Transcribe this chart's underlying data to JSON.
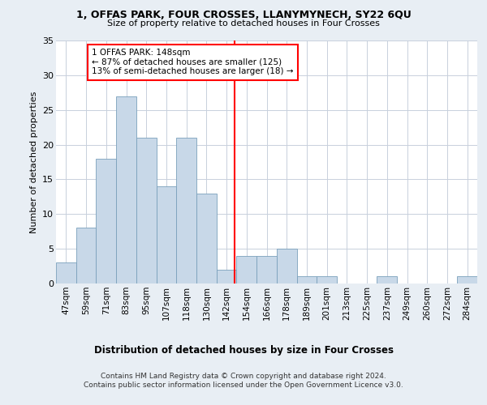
{
  "title1": "1, OFFAS PARK, FOUR CROSSES, LLANYMYNECH, SY22 6QU",
  "title2": "Size of property relative to detached houses in Four Crosses",
  "xlabel": "Distribution of detached houses by size in Four Crosses",
  "ylabel": "Number of detached properties",
  "categories": [
    "47sqm",
    "59sqm",
    "71sqm",
    "83sqm",
    "95sqm",
    "107sqm",
    "118sqm",
    "130sqm",
    "142sqm",
    "154sqm",
    "166sqm",
    "178sqm",
    "189sqm",
    "201sqm",
    "213sqm",
    "225sqm",
    "237sqm",
    "249sqm",
    "260sqm",
    "272sqm",
    "284sqm"
  ],
  "values": [
    3,
    8,
    18,
    27,
    21,
    14,
    21,
    13,
    2,
    4,
    4,
    5,
    1,
    1,
    0,
    0,
    1,
    0,
    0,
    0,
    1
  ],
  "bar_color": "#c8d8e8",
  "bar_edge_color": "#7aa0bb",
  "vline_color": "red",
  "annotation_text": "1 OFFAS PARK: 148sqm\n← 87% of detached houses are smaller (125)\n13% of semi-detached houses are larger (18) →",
  "annotation_box_color": "white",
  "annotation_box_edge": "red",
  "ylim": [
    0,
    35
  ],
  "yticks": [
    0,
    5,
    10,
    15,
    20,
    25,
    30,
    35
  ],
  "bg_color": "#e8eef4",
  "plot_bg_color": "white",
  "grid_color": "#c8d0dc",
  "footer": "Contains HM Land Registry data © Crown copyright and database right 2024.\nContains public sector information licensed under the Open Government Licence v3.0."
}
